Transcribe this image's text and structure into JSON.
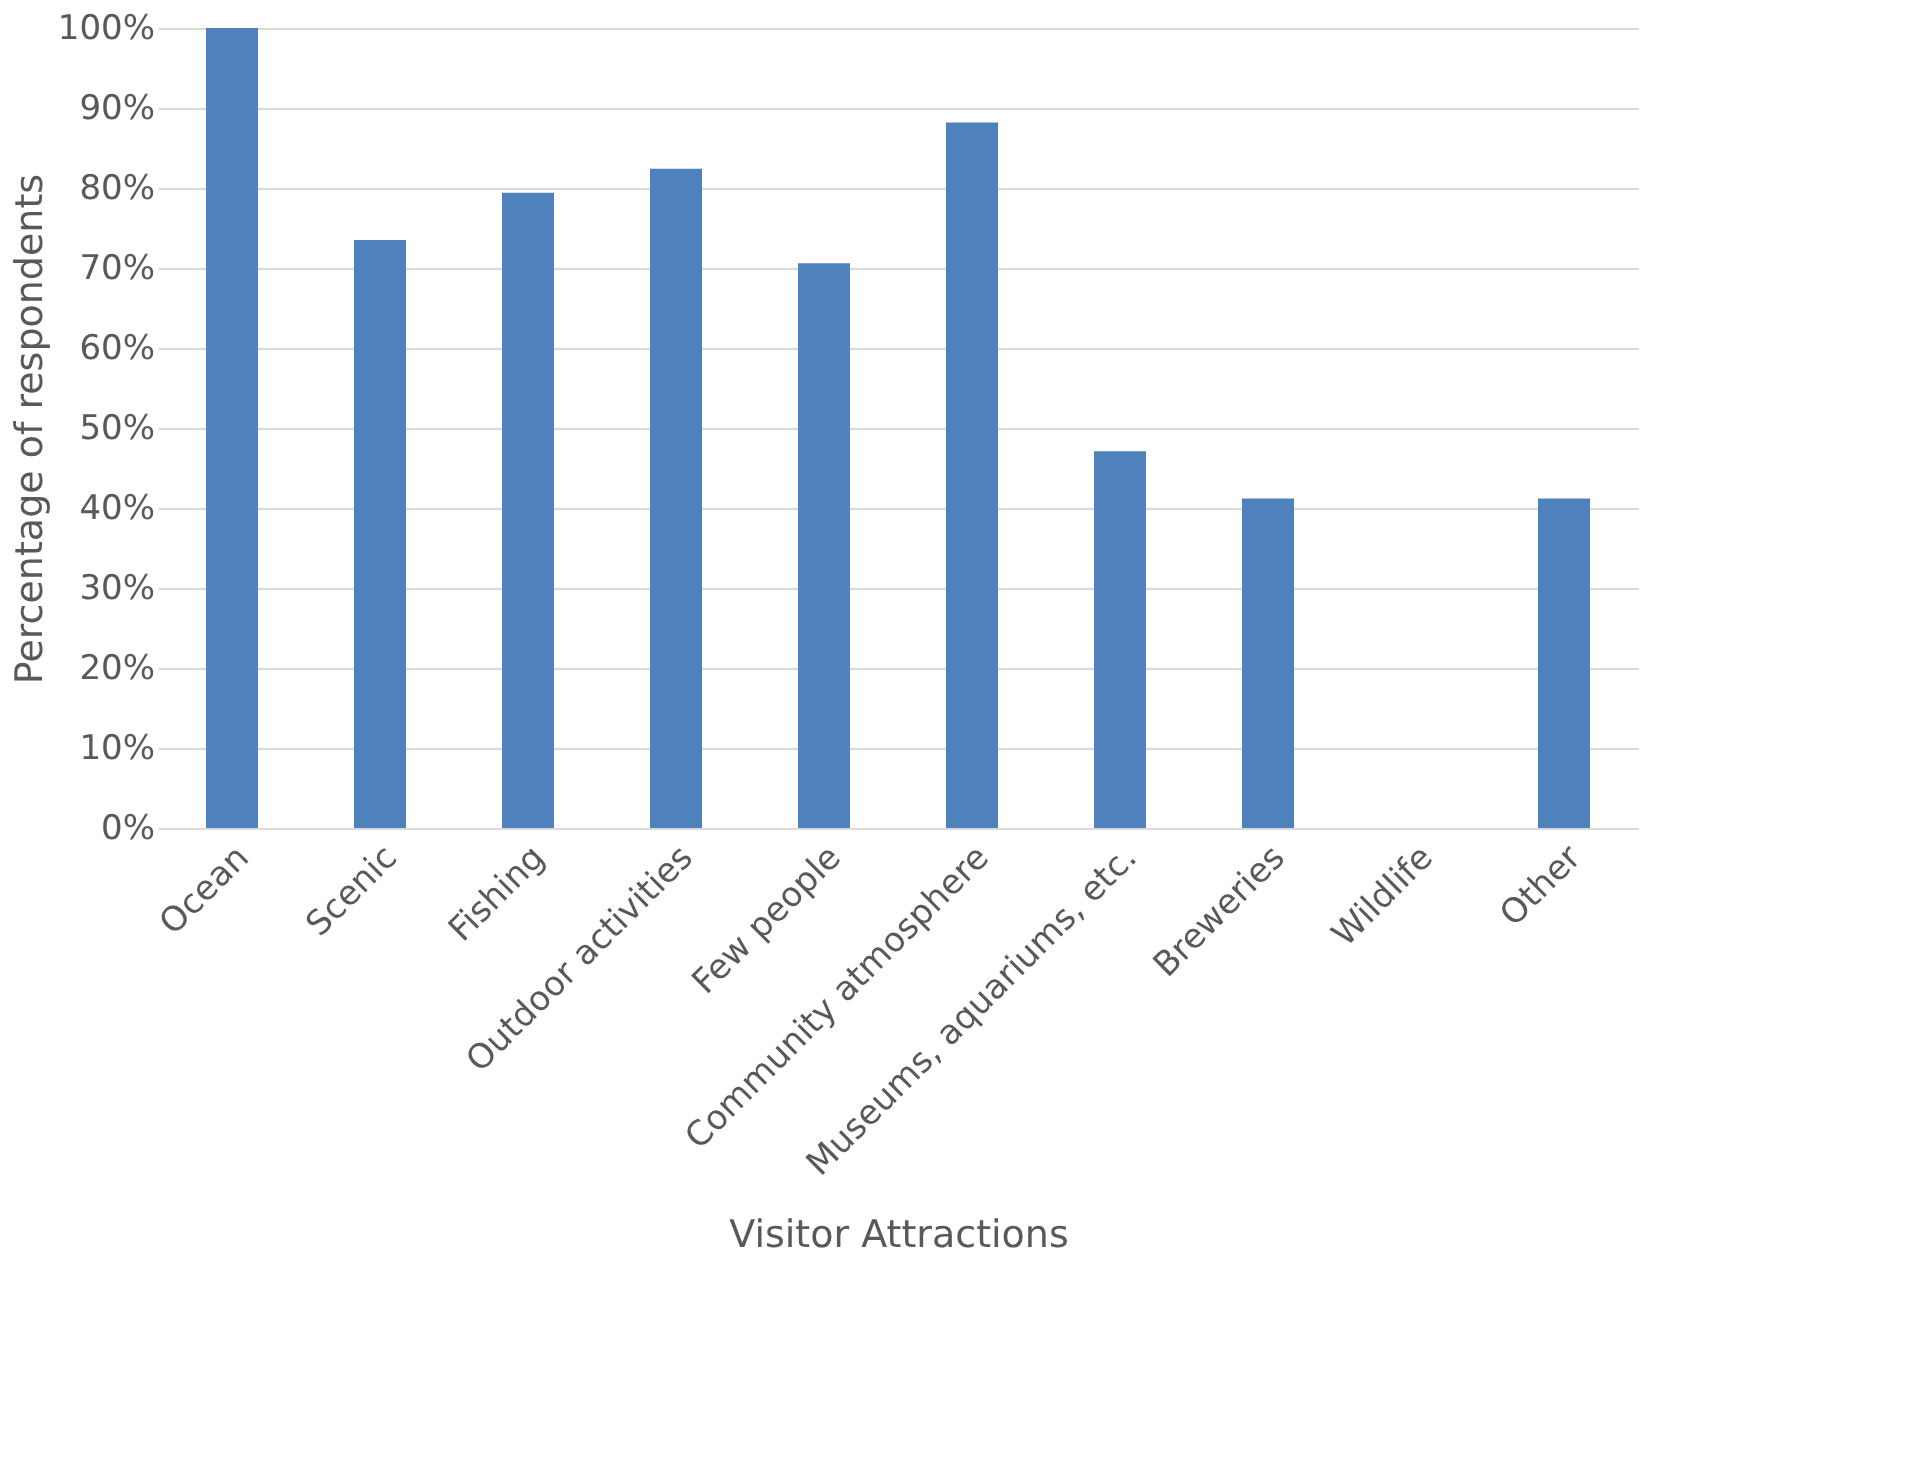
{
  "chart_data": {
    "type": "bar",
    "xlabel": "Visitor Attractions",
    "ylabel": "Percentage of respondents",
    "categories": [
      "Ocean",
      "Scenic",
      "Fishing",
      "Outdoor activities",
      "Few people",
      "Community atmosphere",
      "Museums, aquariums, etc.",
      "Breweries",
      "Wildlife",
      "Other"
    ],
    "values": [
      100,
      73.5,
      79.4,
      82.4,
      70.6,
      88.2,
      47.1,
      41.2,
      0,
      41.2
    ],
    "color": "#4f81bd",
    "ylim": [
      0,
      100
    ],
    "yticks": [
      {
        "value": 0,
        "label": "0%"
      },
      {
        "value": 10,
        "label": "10%"
      },
      {
        "value": 20,
        "label": "20%"
      },
      {
        "value": 30,
        "label": "30%"
      },
      {
        "value": 40,
        "label": "40%"
      },
      {
        "value": 50,
        "label": "50%"
      },
      {
        "value": 60,
        "label": "60%"
      },
      {
        "value": 70,
        "label": "70%"
      },
      {
        "value": 80,
        "label": "80%"
      },
      {
        "value": 90,
        "label": "90%"
      },
      {
        "value": 100,
        "label": "100%"
      }
    ],
    "grid": "y"
  }
}
